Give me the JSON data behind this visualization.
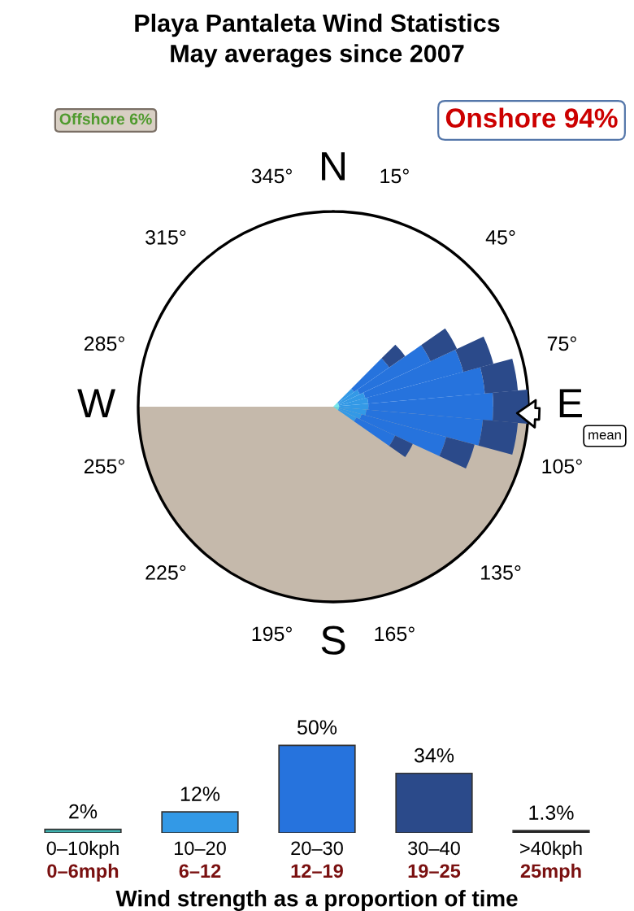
{
  "chart_data": [
    {
      "type": "other",
      "title": "Playa Pantaleta Wind Statistics\nMay averages since 2007",
      "annotations": [
        "Offshore 6%",
        "Onshore 94%",
        "mean",
        "N",
        "15°",
        "45°",
        "75°",
        "E",
        "105°",
        "135°",
        "165°",
        "S",
        "195°",
        "225°",
        "255°",
        "W",
        "285°",
        "315°",
        "345°"
      ]
    },
    {
      "type": "bar",
      "categories": [
        "0–10kph\n0–6mph",
        "10–20\n6–12",
        "20–30\n12–19",
        "30–40\n19–25",
        ">40kph\n25mph"
      ],
      "values": [
        2,
        12,
        50,
        34,
        1.3
      ],
      "colors": [
        "#3fb3b0",
        "#3399e6",
        "#2673dd",
        "#2b4a8a",
        "#222222"
      ],
      "data_labels": true,
      "value_labels": [
        "2%",
        "12%",
        "50%",
        "34%",
        "1.3%"
      ],
      "xlabel": "Wind strength as a proportion of time"
    }
  ]
}
